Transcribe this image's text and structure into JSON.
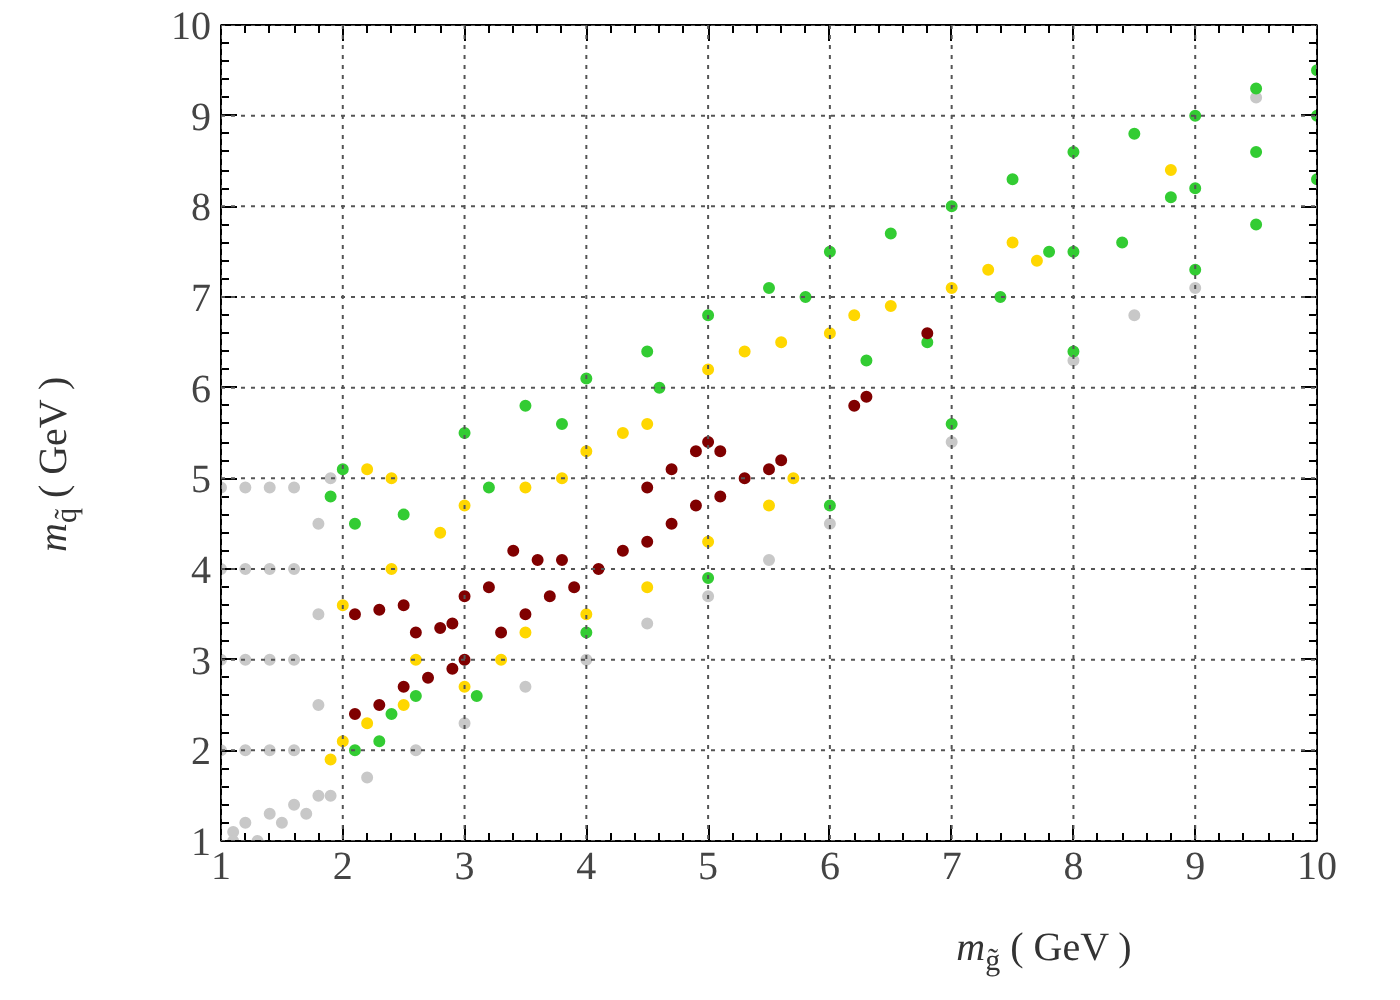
{
  "chart_data": {
    "type": "scatter",
    "xlabel": "m$_{g̃}$ ( GeV )",
    "ylabel": "m$_{q̃}$ ( GeV )",
    "xlim": [
      1,
      10
    ],
    "ylim": [
      1,
      10
    ],
    "xticks": [
      1,
      2,
      3,
      4,
      5,
      6,
      7,
      8,
      9,
      10
    ],
    "yticks": [
      1,
      2,
      3,
      4,
      5,
      6,
      7,
      8,
      9,
      10
    ],
    "grid": true,
    "marker": "circle",
    "series": [
      {
        "color": "#c8c8c8",
        "x": [
          1.1,
          1.0,
          1.0,
          1.0,
          1.0,
          1.2,
          1.2,
          1.2,
          1.2,
          1.2,
          1.4,
          1.4,
          1.4,
          1.4,
          1.4,
          1.6,
          1.6,
          1.6,
          1.6,
          1.6,
          1.8,
          1.8,
          1.8,
          1.8,
          1.1,
          1.3,
          1.5,
          1.7,
          1.9,
          1.9,
          2.2,
          2.6,
          3.0,
          3.5,
          4.0,
          4.5,
          5.0,
          5.5,
          6.0,
          7.0,
          8.0,
          9.0,
          9.5,
          8.5
        ],
        "values": [
          1.1,
          2.0,
          3.0,
          4.0,
          4.9,
          1.2,
          2.0,
          3.0,
          4.0,
          4.9,
          1.3,
          2.0,
          3.0,
          4.0,
          4.9,
          1.4,
          2.0,
          3.0,
          4.0,
          4.9,
          1.5,
          2.5,
          3.5,
          4.5,
          1.0,
          1.0,
          1.2,
          1.3,
          1.5,
          5.0,
          1.7,
          2.0,
          2.3,
          2.7,
          3.0,
          3.4,
          3.7,
          4.1,
          4.5,
          5.4,
          6.3,
          7.1,
          9.2,
          6.8
        ]
      },
      {
        "color": "#33cc33",
        "x": [
          1.9,
          2.0,
          2.1,
          2.3,
          2.4,
          2.6,
          3.0,
          3.1,
          3.5,
          4.0,
          4.0,
          4.5,
          5.0,
          5.0,
          5.5,
          6.0,
          6.0,
          6.5,
          7.0,
          7.0,
          7.5,
          8.0,
          8.0,
          8.0,
          8.5,
          9.0,
          9.0,
          9.0,
          9.5,
          9.5,
          9.5,
          10.0,
          10.0,
          10.0,
          2.1,
          2.5,
          3.2,
          3.8,
          4.6,
          5.8,
          6.3,
          6.8,
          7.4,
          7.8,
          8.4,
          8.8
        ],
        "values": [
          4.8,
          5.1,
          2.0,
          2.1,
          2.4,
          2.6,
          5.5,
          2.6,
          5.8,
          6.1,
          3.3,
          6.4,
          6.8,
          3.9,
          7.1,
          7.5,
          4.7,
          7.7,
          8.0,
          5.6,
          8.3,
          8.6,
          6.4,
          7.5,
          8.8,
          9.0,
          7.3,
          8.2,
          9.3,
          7.8,
          8.6,
          9.5,
          8.3,
          9.0,
          4.5,
          4.6,
          4.9,
          5.6,
          6.0,
          7.0,
          6.3,
          6.5,
          7.0,
          7.5,
          7.6,
          8.1
        ]
      },
      {
        "color": "#ffd700",
        "x": [
          1.9,
          2.0,
          2.0,
          2.2,
          2.4,
          2.5,
          2.8,
          3.0,
          3.0,
          3.3,
          3.5,
          3.5,
          3.8,
          4.0,
          4.0,
          4.3,
          4.5,
          4.5,
          5.0,
          5.0,
          5.3,
          5.5,
          5.7,
          6.0,
          6.2,
          6.5,
          7.0,
          7.3,
          7.7,
          2.2,
          2.4,
          2.6,
          8.8,
          7.5,
          5.6
        ],
        "values": [
          1.9,
          2.1,
          3.6,
          2.3,
          4.0,
          2.5,
          4.4,
          2.7,
          4.7,
          3.0,
          4.9,
          3.3,
          5.0,
          5.3,
          3.5,
          5.5,
          5.6,
          3.8,
          6.2,
          4.3,
          6.4,
          4.7,
          5.0,
          6.6,
          6.8,
          6.9,
          7.1,
          7.3,
          7.4,
          5.1,
          5.0,
          3.0,
          8.4,
          7.6,
          6.5
        ]
      },
      {
        "color": "#800000",
        "x": [
          2.1,
          2.3,
          2.5,
          2.7,
          2.9,
          3.0,
          2.1,
          2.3,
          2.5,
          2.6,
          2.8,
          2.9,
          3.0,
          3.2,
          3.4,
          3.6,
          3.8,
          3.3,
          3.5,
          3.7,
          3.9,
          4.1,
          4.3,
          4.5,
          4.7,
          4.9,
          5.1,
          5.3,
          5.5,
          5.6,
          4.5,
          4.7,
          4.9,
          5.0,
          5.1,
          6.2,
          6.3,
          6.8
        ],
        "values": [
          2.4,
          2.5,
          2.7,
          2.8,
          2.9,
          3.0,
          3.5,
          3.55,
          3.6,
          3.3,
          3.35,
          3.4,
          3.7,
          3.8,
          4.2,
          4.1,
          4.1,
          3.3,
          3.5,
          3.7,
          3.8,
          4.0,
          4.2,
          4.3,
          4.5,
          4.7,
          4.8,
          5.0,
          5.1,
          5.2,
          4.9,
          5.1,
          5.3,
          5.4,
          5.3,
          5.8,
          5.9,
          6.6
        ]
      }
    ]
  }
}
